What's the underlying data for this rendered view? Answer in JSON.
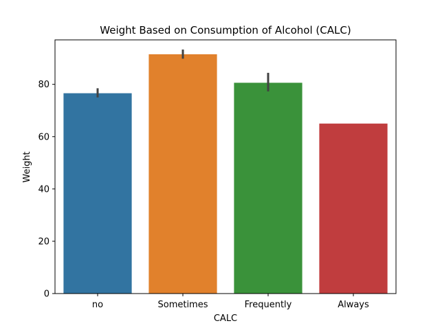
{
  "chart_data": {
    "type": "bar",
    "title": "Weight Based on Consumption of Alcohol (CALC)",
    "xlabel": "CALC",
    "ylabel": "Weight",
    "categories": [
      "no",
      "Sometimes",
      "Frequently",
      "Always"
    ],
    "values": [
      76.6,
      91.5,
      80.6,
      65.0
    ],
    "error_low": [
      75.0,
      89.8,
      77.3,
      65.0
    ],
    "error_high": [
      78.5,
      93.3,
      84.4,
      65.0
    ],
    "colors": [
      "#3274a1",
      "#e1812c",
      "#3a923a",
      "#c03d3e"
    ],
    "ylim": [
      0,
      97
    ],
    "yticks": [
      0,
      20,
      40,
      60,
      80
    ],
    "grid": false,
    "legend": "none"
  }
}
